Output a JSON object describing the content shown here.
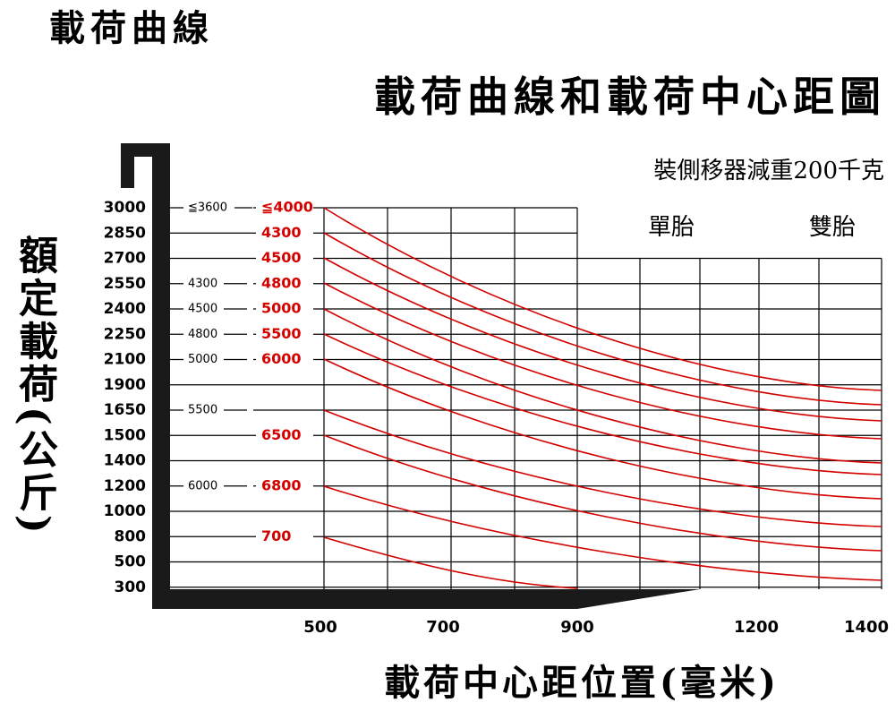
{
  "header": {
    "title": "載荷曲線",
    "main_title": "載荷曲線和載荷中心距圖",
    "note": "裝側移器減重200千克"
  },
  "tires": [
    "單胎",
    "雙胎"
  ],
  "y_axis": {
    "title": "額定載荷(公斤)",
    "rows": [
      {
        "load": "3000",
        "left": "≦3600",
        "red": "≦4000"
      },
      {
        "load": "2850",
        "red": "4300"
      },
      {
        "load": "2700",
        "red": "4500"
      },
      {
        "load": "2550",
        "left": "4300",
        "red": "4800"
      },
      {
        "load": "2400",
        "left": "4500",
        "red": "5000"
      },
      {
        "load": "2250",
        "left": "4800",
        "red": "5500"
      },
      {
        "load": "2100",
        "left": "5000",
        "red": "6000"
      },
      {
        "load": "1900"
      },
      {
        "load": "1650",
        "left": "5500"
      },
      {
        "load": "1500",
        "red": "6500"
      },
      {
        "load": "1400"
      },
      {
        "load": "1200",
        "left": "6000",
        "red": "6800"
      },
      {
        "load": "1000"
      },
      {
        "load": "800",
        "red": "700"
      },
      {
        "load": "500"
      },
      {
        "load": "300"
      }
    ]
  },
  "x_axis": {
    "title": "載荷中心距位置(毫米)",
    "labels": [
      "500",
      "700",
      "900",
      "1200",
      "1400"
    ]
  }
}
